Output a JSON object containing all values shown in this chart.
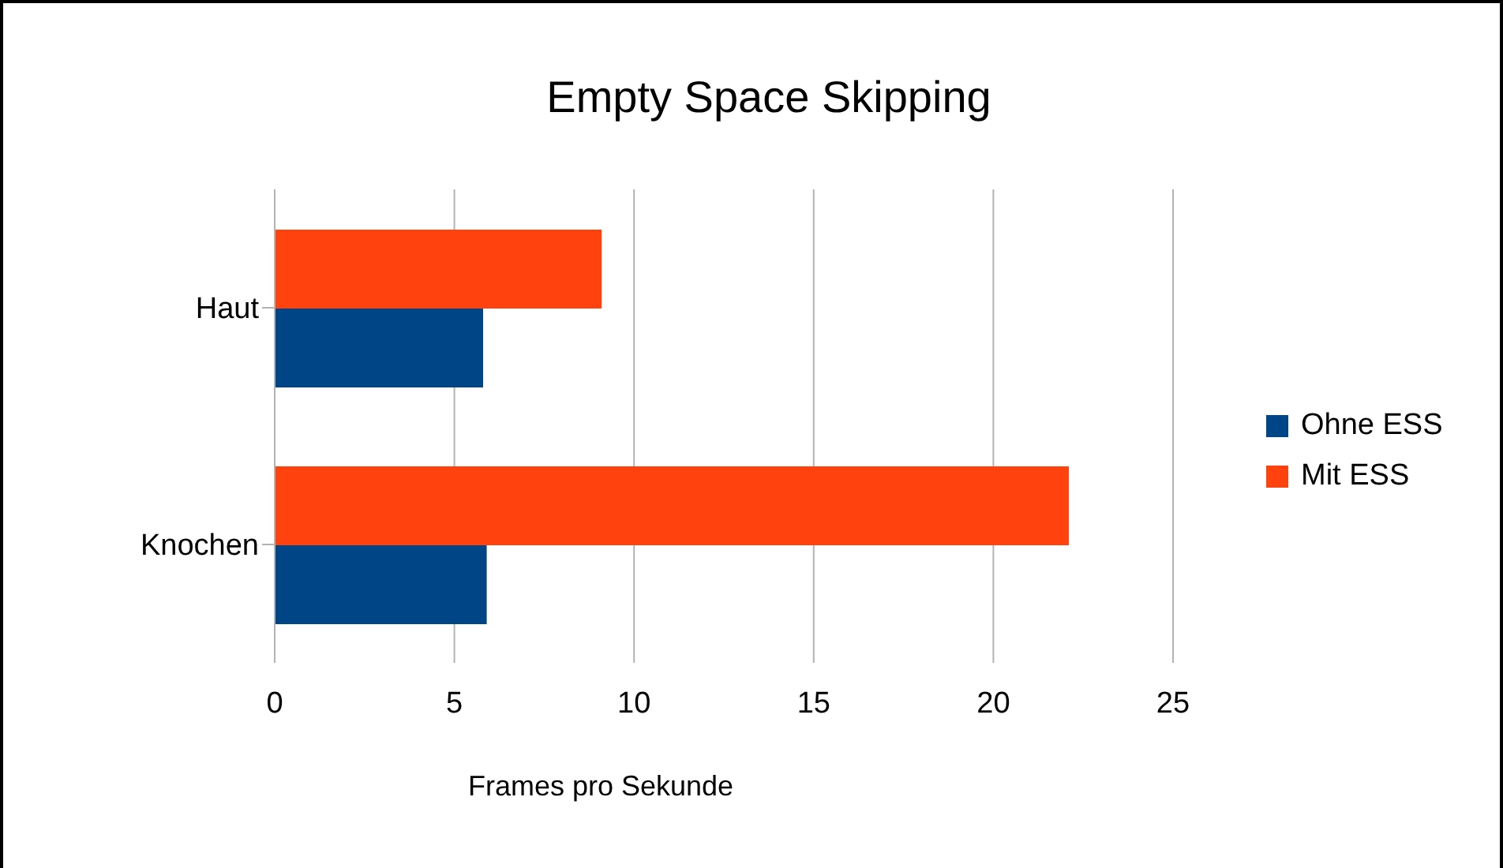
{
  "chart_data": {
    "type": "bar",
    "orientation": "horizontal",
    "title": "Empty Space Skipping",
    "xlabel": "Frames pro Sekunde",
    "categories": [
      "Haut",
      "Knochen"
    ],
    "series": [
      {
        "name": "Ohne ESS",
        "color": "#004586",
        "values": [
          5.8,
          5.9
        ]
      },
      {
        "name": "Mit ESS",
        "color": "#ff420e",
        "values": [
          9.1,
          22.1
        ]
      }
    ],
    "xlim": [
      0,
      25
    ],
    "xticks": [
      0,
      5,
      10,
      15,
      20,
      25
    ],
    "grid": "x",
    "legend": "right"
  }
}
